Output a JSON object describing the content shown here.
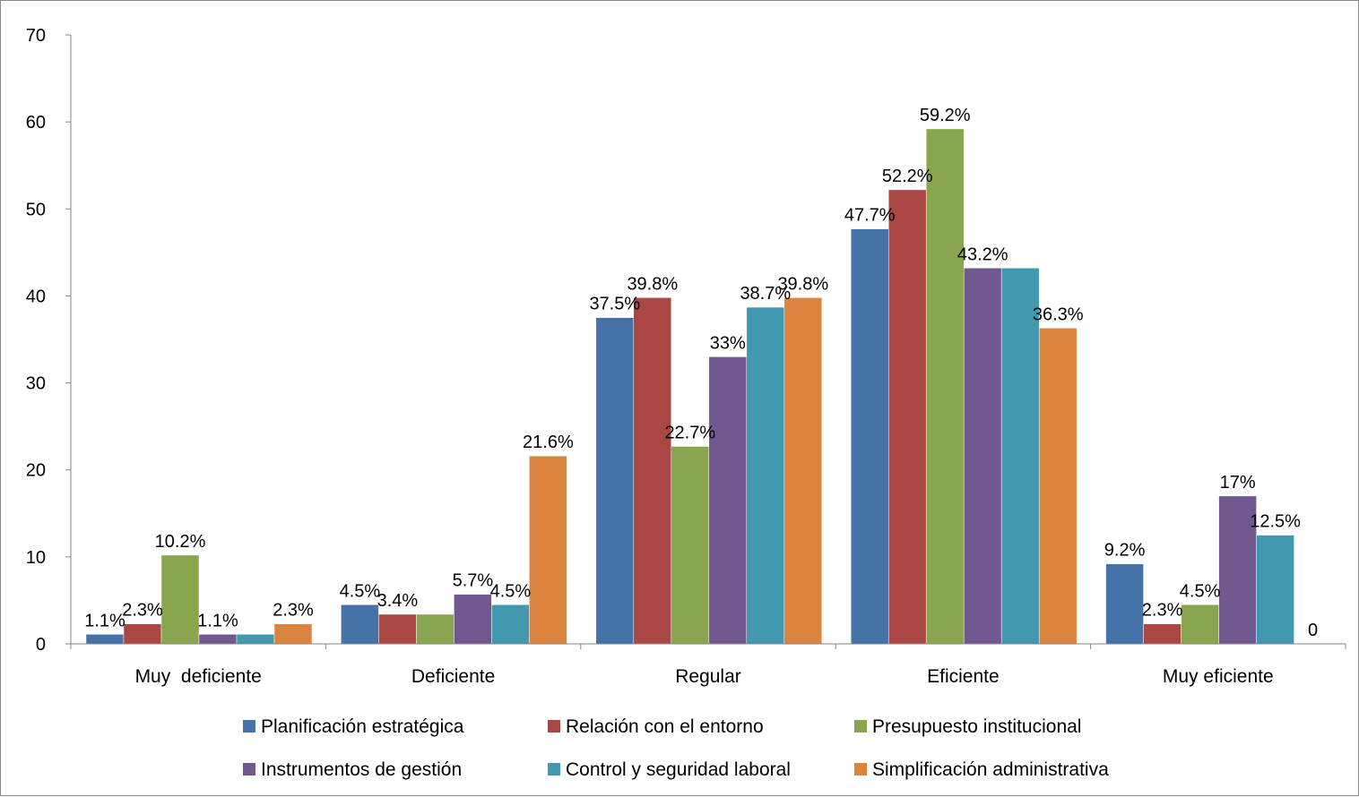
{
  "chart_data": {
    "type": "bar",
    "categories": [
      "Muy  deficiente",
      "Deficiente",
      "Regular",
      "Eficiente",
      "Muy eficiente"
    ],
    "series": [
      {
        "name": "Planificación estratégica",
        "color": "#4572A7",
        "values": [
          1.1,
          4.5,
          37.5,
          47.7,
          9.2
        ],
        "labels": [
          "1.1%",
          "4.5%",
          "37.5%",
          "47.7%",
          "9.2%"
        ]
      },
      {
        "name": "Relación con el entorno",
        "color": "#AA4643",
        "values": [
          2.3,
          3.4,
          39.8,
          52.2,
          2.3
        ],
        "labels": [
          "2.3%",
          "3.4%",
          "39.8%",
          "52.2%",
          "2.3%"
        ]
      },
      {
        "name": "Presupuesto institucional",
        "color": "#89A54E",
        "values": [
          10.2,
          3.4,
          22.7,
          59.2,
          4.5
        ],
        "labels": [
          "10.2%",
          "",
          "22.7%",
          "59.2%",
          "4.5%"
        ]
      },
      {
        "name": "Instrumentos de gestión",
        "color": "#71588F",
        "values": [
          1.1,
          5.7,
          33,
          43.2,
          17
        ],
        "labels": [
          "1.1%",
          "5.7%",
          "33%",
          "43.2%",
          "17%"
        ]
      },
      {
        "name": "Control y seguridad laboral",
        "color": "#4198AF",
        "values": [
          1.1,
          4.5,
          38.7,
          43.2,
          12.5
        ],
        "labels": [
          "",
          "4.5%",
          "38.7%",
          "",
          "12.5%"
        ]
      },
      {
        "name": "Simplificación administrativa",
        "color": "#DB843D",
        "values": [
          2.3,
          21.6,
          39.8,
          36.3,
          0
        ],
        "labels": [
          "2.3%",
          "21.6%",
          "39.8%",
          "36.3%",
          "0"
        ]
      }
    ],
    "y_ticks": [
      "0",
      "10",
      "20",
      "30",
      "40",
      "50",
      "60",
      "70"
    ],
    "ylim": [
      0,
      70
    ],
    "grid": false,
    "legend_position": "bottom",
    "title": "",
    "xlabel": "",
    "ylabel": ""
  }
}
